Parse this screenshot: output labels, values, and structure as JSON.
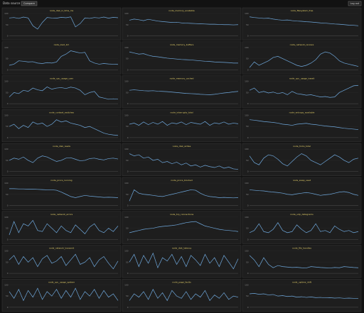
{
  "header": {
    "label": "Data",
    "source": "source",
    "compare": "Compare",
    "logout": "Log out"
  },
  "chart_data": [
    {
      "type": "line",
      "title": "node_disk_io_time_ms",
      "color": "#6fa8dc",
      "ylim": [
        0,
        100
      ],
      "yticks": [
        0,
        50,
        100
      ],
      "values": [
        80,
        82,
        78,
        84,
        80,
        45,
        30,
        60,
        82,
        80,
        79,
        83,
        81,
        85,
        40,
        55,
        80,
        78,
        82,
        80,
        84,
        79,
        83,
        81
      ]
    },
    {
      "type": "line",
      "title": "node_memory_available",
      "color": "#6fa8dc",
      "ylim": [
        0,
        100
      ],
      "yticks": [
        0,
        50,
        100
      ],
      "values": [
        70,
        75,
        72,
        68,
        74,
        70,
        66,
        64,
        62,
        60,
        61,
        58,
        57,
        56,
        55,
        54,
        53,
        52,
        52,
        51,
        50,
        50,
        49,
        50
      ]
    },
    {
      "type": "line",
      "title": "node_filesystem_free",
      "color": "#6fa8dc",
      "ylim": [
        0,
        100
      ],
      "yticks": [
        0,
        50,
        100
      ],
      "values": [
        85,
        82,
        80,
        78,
        79,
        75,
        72,
        70,
        71,
        68,
        66,
        65,
        63,
        62,
        60,
        58,
        57,
        55,
        53,
        52,
        50,
        48,
        47,
        45
      ]
    },
    {
      "type": "line",
      "title": "node_load_1m",
      "color": "#6fa8dc",
      "ylim": [
        0,
        100
      ],
      "yticks": [
        0,
        50,
        100
      ],
      "values": [
        20,
        25,
        40,
        38,
        35,
        36,
        30,
        28,
        32,
        30,
        35,
        60,
        70,
        85,
        80,
        75,
        78,
        40,
        30,
        25,
        28,
        26,
        25,
        24
      ]
    },
    {
      "type": "line",
      "title": "node_memory_buffers",
      "color": "#6fa8dc",
      "ylim": [
        0,
        100
      ],
      "yticks": [
        0,
        50,
        100
      ],
      "values": [
        80,
        75,
        70,
        72,
        65,
        60,
        58,
        55,
        52,
        50,
        48,
        46,
        45,
        44,
        42,
        40,
        38,
        37,
        35,
        34,
        33,
        32,
        30,
        30
      ]
    },
    {
      "type": "line",
      "title": "node_network_receive",
      "color": "#6fa8dc",
      "ylim": [
        0,
        100
      ],
      "yticks": [
        0,
        50,
        100
      ],
      "values": [
        10,
        35,
        20,
        30,
        40,
        55,
        60,
        50,
        40,
        30,
        20,
        15,
        20,
        30,
        45,
        70,
        80,
        75,
        60,
        40,
        30,
        25,
        20,
        15
      ]
    },
    {
      "type": "line",
      "title": "node_cpu_usage_user",
      "color": "#6fa8dc",
      "ylim": [
        0,
        100
      ],
      "yticks": [
        0,
        50,
        100
      ],
      "values": [
        30,
        50,
        45,
        60,
        55,
        70,
        62,
        58,
        75,
        65,
        70,
        72,
        68,
        74,
        70,
        60,
        40,
        50,
        55,
        30,
        25,
        20,
        22,
        20
      ]
    },
    {
      "type": "line",
      "title": "node_memory_cached",
      "color": "#6fa8dc",
      "ylim": [
        0,
        100
      ],
      "yticks": [
        0,
        50,
        100
      ],
      "values": [
        60,
        62,
        60,
        58,
        57,
        58,
        56,
        55,
        54,
        52,
        50,
        48,
        46,
        45,
        44,
        42,
        41,
        40,
        42,
        45,
        48,
        50,
        53,
        55
      ]
    },
    {
      "type": "line",
      "title": "node_cpu_usage_iowait",
      "color": "#6fa8dc",
      "ylim": [
        0,
        100
      ],
      "yticks": [
        0,
        50,
        100
      ],
      "values": [
        60,
        70,
        50,
        55,
        48,
        52,
        45,
        50,
        40,
        55,
        45,
        42,
        38,
        40,
        35,
        30,
        32,
        28,
        30,
        50,
        60,
        70,
        80,
        82
      ]
    },
    {
      "type": "line",
      "title": "node_context_switches",
      "color": "#6fa8dc",
      "ylim": [
        0,
        100
      ],
      "yticks": [
        0,
        50,
        100
      ],
      "values": [
        50,
        60,
        40,
        55,
        45,
        70,
        60,
        65,
        50,
        60,
        80,
        70,
        75,
        65,
        60,
        55,
        45,
        50,
        40,
        30,
        20,
        15,
        12,
        10
      ]
    },
    {
      "type": "line",
      "title": "node_interrupts_total",
      "color": "#6fa8dc",
      "ylim": [
        0,
        100
      ],
      "yticks": [
        0,
        50,
        100
      ],
      "values": [
        60,
        65,
        55,
        70,
        58,
        68,
        60,
        72,
        55,
        66,
        62,
        70,
        58,
        68,
        64,
        60,
        72,
        55,
        66,
        62,
        70,
        60,
        65,
        62
      ]
    },
    {
      "type": "line",
      "title": "node_entropy_available",
      "color": "#6fa8dc",
      "ylim": [
        0,
        100
      ],
      "yticks": [
        0,
        50,
        100
      ],
      "values": [
        80,
        78,
        75,
        72,
        70,
        68,
        65,
        60,
        58,
        55,
        60,
        62,
        64,
        60,
        58,
        55,
        52,
        50,
        48,
        45,
        42,
        40,
        38,
        36
      ]
    },
    {
      "type": "line",
      "title": "node_disk_reads",
      "color": "#6fa8dc",
      "ylim": [
        0,
        100
      ],
      "yticks": [
        0,
        50,
        100
      ],
      "values": [
        50,
        60,
        55,
        65,
        50,
        40,
        60,
        70,
        65,
        55,
        45,
        50,
        60,
        62,
        55,
        48,
        50,
        58,
        60,
        55,
        52,
        58,
        60,
        56
      ]
    },
    {
      "type": "line",
      "title": "node_disk_writes",
      "color": "#6fa8dc",
      "ylim": [
        0,
        100
      ],
      "yticks": [
        0,
        50,
        100
      ],
      "values": [
        80,
        70,
        75,
        60,
        65,
        50,
        55,
        40,
        45,
        35,
        42,
        30,
        38,
        25,
        30,
        20,
        28,
        22,
        18,
        25,
        15,
        20,
        12,
        10
      ]
    },
    {
      "type": "line",
      "title": "node_forks_total",
      "color": "#6fa8dc",
      "ylim": [
        0,
        100
      ],
      "yticks": [
        0,
        50,
        100
      ],
      "values": [
        70,
        40,
        30,
        60,
        75,
        70,
        55,
        35,
        25,
        45,
        65,
        80,
        70,
        50,
        40,
        30,
        45,
        60,
        75,
        65,
        50,
        40,
        55,
        60
      ]
    },
    {
      "type": "line",
      "title": "node_procs_running",
      "color": "#6fa8dc",
      "ylim": [
        0,
        100
      ],
      "yticks": [
        0,
        50,
        100
      ],
      "values": [
        75,
        75,
        74,
        74,
        73,
        73,
        72,
        71,
        70,
        70,
        68,
        60,
        50,
        40,
        35,
        40,
        45,
        42,
        40,
        38,
        36,
        37,
        36,
        35
      ]
    },
    {
      "type": "line",
      "title": "node_procs_blocked",
      "color": "#6fa8dc",
      "ylim": [
        0,
        100
      ],
      "yticks": [
        0,
        50,
        100
      ],
      "values": [
        20,
        70,
        55,
        50,
        48,
        45,
        42,
        40,
        45,
        50,
        55,
        60,
        65,
        70,
        68,
        55,
        45,
        40,
        38,
        35,
        36,
        35,
        34,
        35
      ]
    },
    {
      "type": "line",
      "title": "node_swap_used",
      "color": "#6fa8dc",
      "ylim": [
        0,
        100
      ],
      "yticks": [
        0,
        50,
        100
      ],
      "values": [
        70,
        68,
        66,
        65,
        62,
        60,
        58,
        55,
        50,
        48,
        52,
        55,
        58,
        55,
        50,
        45,
        48,
        50,
        55,
        60,
        62,
        58,
        50,
        45
      ]
    },
    {
      "type": "line",
      "title": "node_network_errors",
      "color": "#6fa8dc",
      "ylim": [
        0,
        100
      ],
      "yticks": [
        0,
        50,
        100
      ],
      "values": [
        20,
        80,
        30,
        70,
        60,
        85,
        40,
        35,
        70,
        50,
        30,
        60,
        40,
        30,
        65,
        45,
        25,
        55,
        70,
        40,
        30,
        50,
        35,
        60
      ]
    },
    {
      "type": "line",
      "title": "node_tcp_connections",
      "color": "#6fa8dc",
      "ylim": [
        0,
        100
      ],
      "yticks": [
        0,
        50,
        100
      ],
      "values": [
        30,
        35,
        40,
        45,
        48,
        50,
        55,
        58,
        60,
        62,
        65,
        70,
        75,
        78,
        80,
        70,
        60,
        55,
        50,
        45,
        42,
        40,
        38,
        35
      ]
    },
    {
      "type": "line",
      "title": "node_udp_datagrams",
      "color": "#6fa8dc",
      "ylim": [
        0,
        100
      ],
      "yticks": [
        0,
        50,
        100
      ],
      "values": [
        30,
        40,
        70,
        35,
        30,
        45,
        75,
        40,
        30,
        35,
        65,
        45,
        30,
        40,
        70,
        35,
        40,
        30,
        60,
        45,
        35,
        40,
        30,
        35
      ]
    },
    {
      "type": "line",
      "title": "node_network_transmit",
      "color": "#6fa8dc",
      "ylim": [
        0,
        100
      ],
      "yticks": [
        0,
        50,
        100
      ],
      "values": [
        60,
        80,
        40,
        75,
        50,
        70,
        30,
        65,
        80,
        45,
        55,
        75,
        35,
        60,
        85,
        40,
        50,
        70,
        30,
        60,
        75,
        45,
        20,
        55
      ]
    },
    {
      "type": "line",
      "title": "node_disk_latency",
      "color": "#6fa8dc",
      "ylim": [
        0,
        100
      ],
      "yticks": [
        0,
        50,
        100
      ],
      "values": [
        50,
        85,
        30,
        80,
        45,
        90,
        25,
        70,
        55,
        85,
        40,
        75,
        30,
        80,
        60,
        35,
        85,
        45,
        70,
        30,
        80,
        50,
        20,
        65
      ]
    },
    {
      "type": "line",
      "title": "node_file_handles",
      "color": "#6fa8dc",
      "ylim": [
        0,
        100
      ],
      "yticks": [
        0,
        50,
        100
      ],
      "values": [
        80,
        60,
        30,
        70,
        40,
        25,
        35,
        30,
        28,
        26,
        27,
        25,
        24,
        30,
        28,
        26,
        25,
        24,
        26,
        25,
        30,
        28,
        26,
        25
      ]
    },
    {
      "type": "line",
      "title": "node_cpu_usage_system",
      "color": "#6fa8dc",
      "ylim": [
        0,
        100
      ],
      "yticks": [
        0,
        50,
        100
      ],
      "values": [
        70,
        40,
        80,
        30,
        75,
        45,
        85,
        35,
        70,
        50,
        80,
        40,
        75,
        45,
        85,
        35,
        70,
        50,
        80,
        40,
        75,
        45,
        60,
        30
      ]
    },
    {
      "type": "line",
      "title": "node_page_faults",
      "color": "#6fa8dc",
      "ylim": [
        0,
        100
      ],
      "yticks": [
        0,
        50,
        100
      ],
      "values": [
        30,
        60,
        45,
        70,
        35,
        80,
        40,
        65,
        30,
        75,
        50,
        40,
        70,
        35,
        60,
        45,
        75,
        30,
        55,
        40,
        65,
        35,
        50,
        45
      ]
    },
    {
      "type": "line",
      "title": "node_uptime_drift",
      "color": "#6fa8dc",
      "ylim": [
        0,
        100
      ],
      "yticks": [
        0,
        50,
        100
      ],
      "values": [
        60,
        62,
        58,
        60,
        55,
        57,
        50,
        52,
        48,
        50,
        45,
        47,
        44,
        46,
        43,
        44,
        42,
        43,
        41,
        42,
        40,
        41,
        40,
        40
      ]
    }
  ]
}
